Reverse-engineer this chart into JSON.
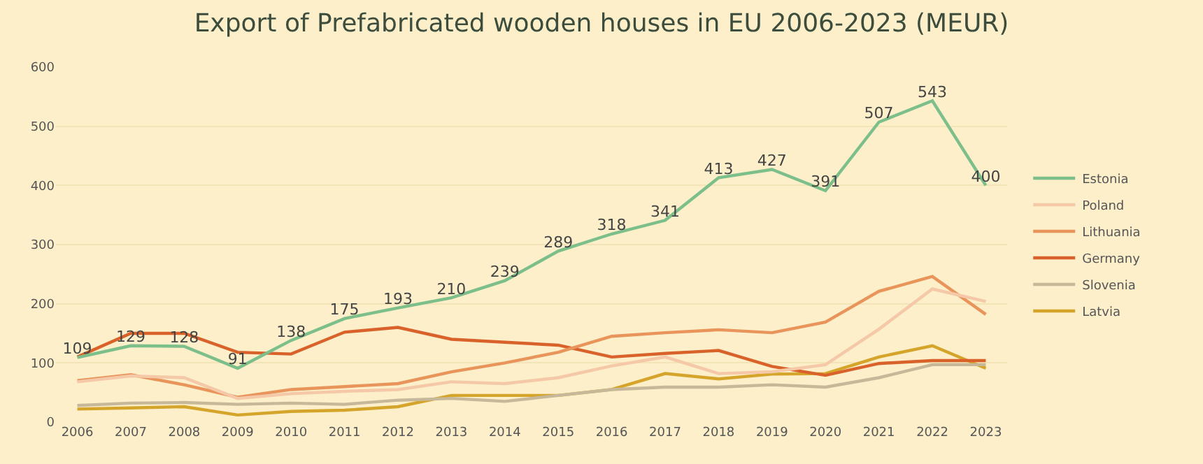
{
  "chart_data": {
    "type": "line",
    "title": "Export of Prefabricated wooden houses in EU 2006-2023 (MEUR)",
    "categories": [
      "2006",
      "2007",
      "2008",
      "2009",
      "2010",
      "2011",
      "2012",
      "2013",
      "2014",
      "2015",
      "2016",
      "2017",
      "2018",
      "2019",
      "2020",
      "2021",
      "2022",
      "2023"
    ],
    "ylim": [
      0,
      600
    ],
    "yticks": [
      0,
      100,
      200,
      300,
      400,
      500,
      600
    ],
    "grid": "y",
    "legend": "right",
    "marker": "none",
    "line_style": "solid",
    "series": [
      {
        "name": "Estonia",
        "color": "#7dbf8a",
        "values": [
          109,
          129,
          128,
          91,
          138,
          175,
          193,
          210,
          239,
          289,
          318,
          341,
          413,
          427,
          391,
          507,
          543,
          400
        ],
        "value_labels": [
          "109",
          "129",
          "128",
          "91",
          "138",
          "175",
          "193",
          "210",
          "239",
          "289",
          "318",
          "341",
          "413",
          "427",
          "391",
          "507",
          "543",
          "400"
        ]
      },
      {
        "name": "Poland",
        "color": "#f5c8a8",
        "values": [
          68,
          78,
          75,
          40,
          48,
          52,
          55,
          68,
          65,
          75,
          95,
          110,
          82,
          85,
          97,
          157,
          225,
          204
        ]
      },
      {
        "name": "Lithuania",
        "color": "#e8945a",
        "values": [
          70,
          80,
          63,
          42,
          55,
          60,
          65,
          85,
          100,
          118,
          145,
          151,
          156,
          151,
          169,
          221,
          246,
          182
        ]
      },
      {
        "name": "Germany",
        "color": "#d9622b",
        "values": [
          110,
          150,
          150,
          118,
          115,
          152,
          160,
          140,
          135,
          130,
          110,
          116,
          121,
          94,
          79,
          99,
          104,
          104
        ]
      },
      {
        "name": "Slovenia",
        "color": "#c8b89a",
        "values": [
          28,
          32,
          33,
          30,
          32,
          30,
          37,
          40,
          35,
          45,
          55,
          59,
          59,
          63,
          59,
          75,
          97,
          97
        ]
      },
      {
        "name": "Latvia",
        "color": "#d4a52a",
        "values": [
          22,
          24,
          26,
          12,
          18,
          20,
          26,
          45,
          45,
          45,
          55,
          82,
          73,
          81,
          82,
          110,
          129,
          91
        ]
      }
    ]
  }
}
